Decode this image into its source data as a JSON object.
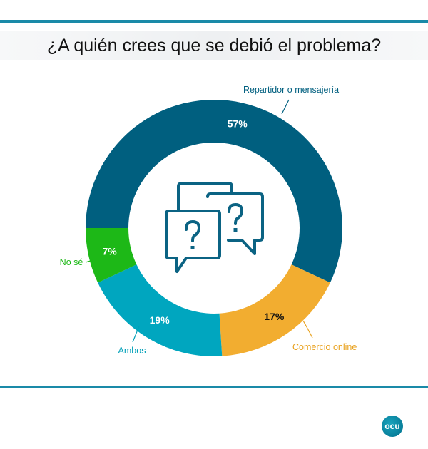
{
  "chart_data": {
    "type": "pie",
    "title": "¿A quién crees que se debió el problema?",
    "donut": true,
    "slices": [
      {
        "label": "Repartidor o mensajería",
        "value": 57,
        "display": "57%",
        "color": "#005f7f",
        "label_color": "#005f7f"
      },
      {
        "label": "Comercio online",
        "value": 17,
        "display": "17%",
        "color": "#f2ad30",
        "label_color": "#e9a21f"
      },
      {
        "label": "Ambos",
        "value": 19,
        "display": "19%",
        "color": "#00a6bf",
        "label_color": "#00a0b8"
      },
      {
        "label": "No sé",
        "value": 7,
        "display": "7%",
        "color": "#1db817",
        "label_color": "#1db817"
      }
    ],
    "center_icon": "question-speech-bubbles-icon"
  },
  "logo": {
    "text": "ocu"
  },
  "colors": {
    "rule": "#1a8aa8"
  }
}
